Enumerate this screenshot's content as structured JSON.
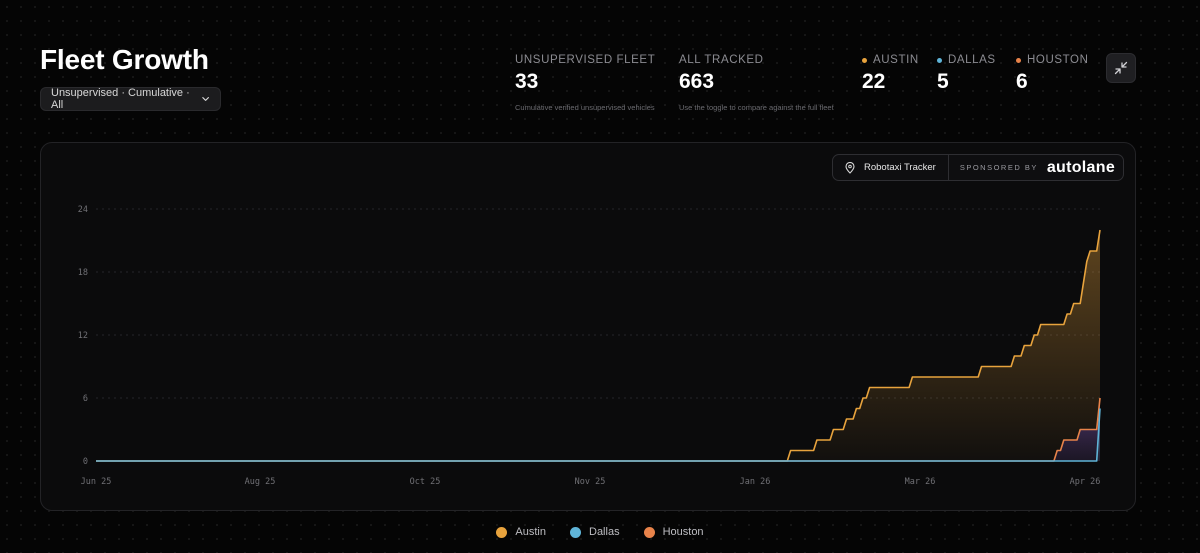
{
  "header": {
    "title": "Fleet Growth",
    "filter_label": "Unsupervised · Cumulative · All"
  },
  "stats": {
    "unsupervised": {
      "label": "UNSUPERVISED FLEET",
      "value": "33",
      "sub": "Cumulative verified unsupervised vehicles"
    },
    "all": {
      "label": "ALL TRACKED",
      "value": "663",
      "sub": "Use the toggle to compare against the full fleet"
    },
    "cities": [
      {
        "label": "AUSTIN",
        "value": "22",
        "color": "#e8a33d"
      },
      {
        "label": "DALLAS",
        "value": "5",
        "color": "#5fb4d8"
      },
      {
        "label": "HOUSTON",
        "value": "6",
        "color": "#e8834a"
      }
    ]
  },
  "badge": {
    "tracker": "Robotaxi Tracker",
    "sponsored": "SPONSORED BY",
    "brand": "autolane"
  },
  "chart_data": {
    "type": "area",
    "title": "",
    "xlabel": "",
    "ylabel": "",
    "ylim": [
      0,
      24
    ],
    "yticks": [
      "0",
      "6",
      "12",
      "18",
      "24"
    ],
    "xticks": [
      "Jun 25",
      "Aug 25",
      "Oct 25",
      "Nov 25",
      "Jan 26",
      "Mar 26",
      "Apr 26"
    ],
    "grid": "horizontal dashed",
    "legend": "bottom-center",
    "series": [
      {
        "name": "Austin",
        "color": "#e8a33d",
        "points": [
          [
            "2025-06-26",
            0
          ],
          [
            "2026-01-22",
            0
          ],
          [
            "2026-01-23",
            1
          ],
          [
            "2026-01-30",
            1
          ],
          [
            "2026-01-31",
            2
          ],
          [
            "2026-02-04",
            2
          ],
          [
            "2026-02-05",
            3
          ],
          [
            "2026-02-08",
            3
          ],
          [
            "2026-02-09",
            4
          ],
          [
            "2026-02-11",
            4
          ],
          [
            "2026-02-12",
            5
          ],
          [
            "2026-02-13",
            5
          ],
          [
            "2026-02-14",
            6
          ],
          [
            "2026-02-15",
            6
          ],
          [
            "2026-02-16",
            7
          ],
          [
            "2026-02-28",
            7
          ],
          [
            "2026-03-01",
            8
          ],
          [
            "2026-03-21",
            8
          ],
          [
            "2026-03-22",
            9
          ],
          [
            "2026-03-31",
            9
          ],
          [
            "2026-04-01",
            10
          ],
          [
            "2026-04-03",
            10
          ],
          [
            "2026-04-04",
            11
          ],
          [
            "2026-04-06",
            11
          ],
          [
            "2026-04-07",
            12
          ],
          [
            "2026-04-08",
            12
          ],
          [
            "2026-04-09",
            13
          ],
          [
            "2026-04-16",
            13
          ],
          [
            "2026-04-17",
            14
          ],
          [
            "2026-04-18",
            14
          ],
          [
            "2026-04-19",
            15
          ],
          [
            "2026-04-21",
            15
          ],
          [
            "2026-04-22",
            17
          ],
          [
            "2026-04-23",
            19
          ],
          [
            "2026-04-24",
            20
          ],
          [
            "2026-04-26",
            20
          ],
          [
            "2026-04-27",
            22
          ]
        ]
      },
      {
        "name": "Dallas",
        "color": "#5fb4d8",
        "points": [
          [
            "2025-06-26",
            0
          ],
          [
            "2026-04-26",
            0
          ],
          [
            "2026-04-27",
            5
          ]
        ]
      },
      {
        "name": "Houston",
        "color": "#e8834a",
        "points": [
          [
            "2025-06-26",
            0
          ],
          [
            "2026-04-13",
            0
          ],
          [
            "2026-04-14",
            1
          ],
          [
            "2026-04-15",
            1
          ],
          [
            "2026-04-16",
            2
          ],
          [
            "2026-04-20",
            2
          ],
          [
            "2026-04-21",
            3
          ],
          [
            "2026-04-26",
            3
          ],
          [
            "2026-04-27",
            6
          ]
        ]
      }
    ]
  },
  "legend": [
    "Austin",
    "Dallas",
    "Houston"
  ]
}
